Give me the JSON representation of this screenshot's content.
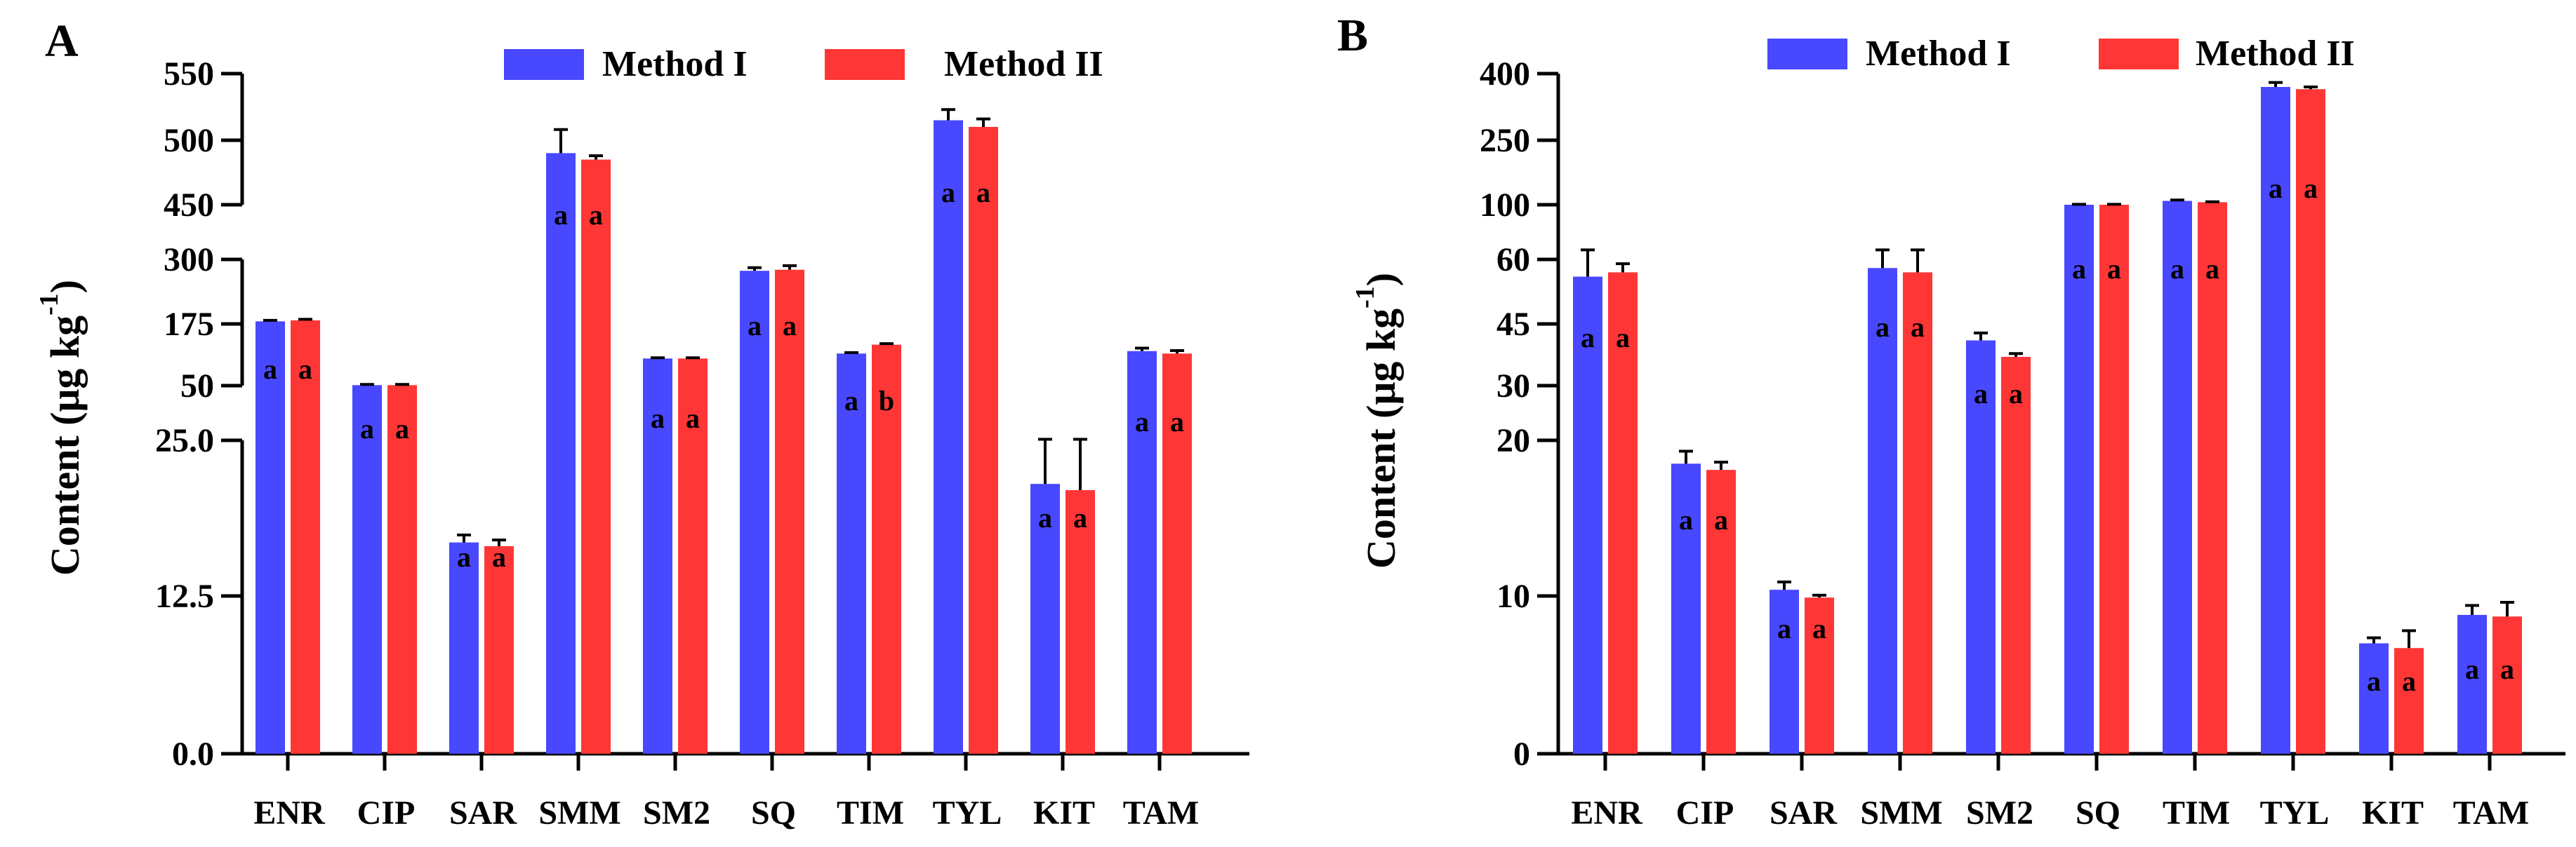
{
  "colors": {
    "method1": "#4848ff",
    "method2": "#ff3636",
    "axis": "#000000"
  },
  "chart_data": [
    {
      "type": "bar",
      "panel_label": "A",
      "ylabel": "Content (μg kg",
      "ylabel_sup": "-1",
      "ylabel_close": ")",
      "xlabel": "",
      "legend_position": "top-center",
      "grid": false,
      "axis_breaks": [
        [
          25.0,
          50
        ],
        [
          300,
          450
        ]
      ],
      "yticks": [
        "0.0",
        "12.5",
        "25.0",
        "50",
        "175",
        "300",
        "450",
        "500",
        "550"
      ],
      "categories": [
        "ENR",
        "CIP",
        "SAR",
        "SMM",
        "SM2",
        "SQ",
        "TIM",
        "TYL",
        "KIT",
        "TAM"
      ],
      "series": [
        {
          "name": "Method I",
          "values": [
            180,
            51,
            16.8,
            490,
            105,
            278,
            115,
            515,
            21.5,
            120
          ],
          "errors": [
            2,
            1.5,
            0.6,
            18,
            1.5,
            6,
            2,
            8,
            4.0,
            6
          ],
          "letters": [
            "a",
            "a",
            "a",
            "a",
            "a",
            "a",
            "a",
            "a",
            "a",
            "a"
          ]
        },
        {
          "name": "Method II",
          "values": [
            182,
            51,
            16.5,
            485,
            105,
            280,
            133,
            510,
            21.0,
            115
          ],
          "errors": [
            2,
            1.5,
            0.5,
            3,
            1.5,
            8,
            2,
            6,
            4.5,
            6
          ],
          "letters": [
            "a",
            "a",
            "a",
            "a",
            "a",
            "a",
            "b",
            "a",
            "a",
            "a"
          ]
        }
      ]
    },
    {
      "type": "bar",
      "panel_label": "B",
      "ylabel": "Content (μg kg",
      "ylabel_sup": "-1",
      "ylabel_close": ")",
      "xlabel": "",
      "legend_position": "top-center",
      "grid": false,
      "scale": "piecewise (0–20, 20–60, 60–100, 100–400)",
      "yticks": [
        "0",
        "10",
        "20",
        "30",
        "45",
        "60",
        "100",
        "250",
        "400"
      ],
      "categories": [
        "ENR",
        "CIP",
        "SAR",
        "SMM",
        "SM2",
        "SQ",
        "TIM",
        "TYL",
        "KIT",
        "TAM"
      ],
      "series": [
        {
          "name": "Method I",
          "values": [
            56,
            18.5,
            10.4,
            58,
            41,
            100,
            109,
            370,
            7.0,
            8.8
          ],
          "errors": [
            11,
            0.8,
            0.5,
            9,
            1.8,
            1,
            2,
            10,
            0.35,
            0.6
          ],
          "letters": [
            "a",
            "a",
            "a",
            "a",
            "a",
            "a",
            "a",
            "a",
            "a",
            "a"
          ]
        },
        {
          "name": "Method II",
          "values": [
            57,
            18.1,
            9.9,
            57,
            37,
            100,
            106,
            365,
            6.7,
            8.7
          ],
          "errors": [
            2,
            0.5,
            0.15,
            10,
            0.8,
            1,
            1,
            5,
            1.1,
            0.9
          ],
          "letters": [
            "a",
            "a",
            "a",
            "a",
            "a",
            "a",
            "a",
            "a",
            "a",
            "a"
          ]
        }
      ]
    }
  ]
}
